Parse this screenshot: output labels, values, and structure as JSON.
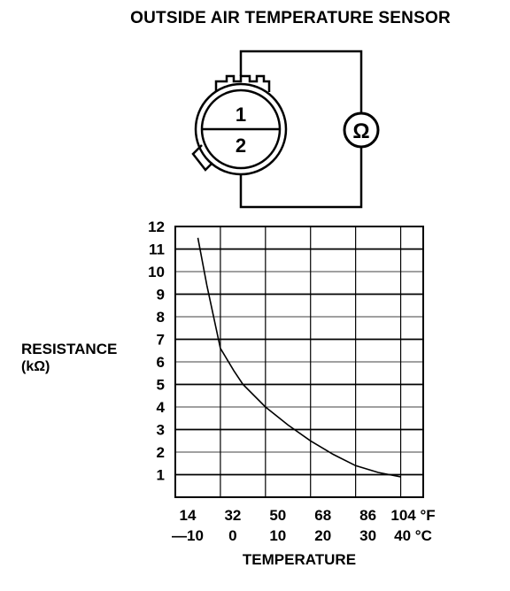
{
  "title": "OUTSIDE AIR TEMPERATURE SENSOR",
  "sensor": {
    "terminal_1": "1",
    "terminal_2": "2",
    "meter_icon": "ohmmeter-icon",
    "meter_symbol": "Ω"
  },
  "chart_data": {
    "type": "line",
    "xlabel": "TEMPERATURE",
    "ylabel_line1": "RESISTANCE",
    "ylabel_line2": "(kΩ)",
    "x_ticks_f": [
      "14",
      "32",
      "50",
      "68",
      "86",
      "104 °F"
    ],
    "x_ticks_c": [
      "—10",
      "0",
      "10",
      "20",
      "30",
      "40 °C"
    ],
    "x_tick_values_c": [
      -10,
      0,
      10,
      20,
      30,
      40
    ],
    "y_ticks": [
      "1",
      "2",
      "3",
      "4",
      "5",
      "6",
      "7",
      "8",
      "9",
      "10",
      "11",
      "12"
    ],
    "xlim_c": [
      -10,
      45
    ],
    "ylim": [
      0,
      12
    ],
    "grid": true,
    "series": [
      {
        "x": [
          -5,
          -3,
          0,
          3,
          5,
          10,
          15,
          20,
          25,
          30,
          35,
          40
        ],
        "values": [
          11.5,
          9.4,
          6.6,
          5.6,
          5.0,
          4.0,
          3.2,
          2.5,
          1.9,
          1.4,
          1.1,
          0.9
        ]
      }
    ]
  }
}
